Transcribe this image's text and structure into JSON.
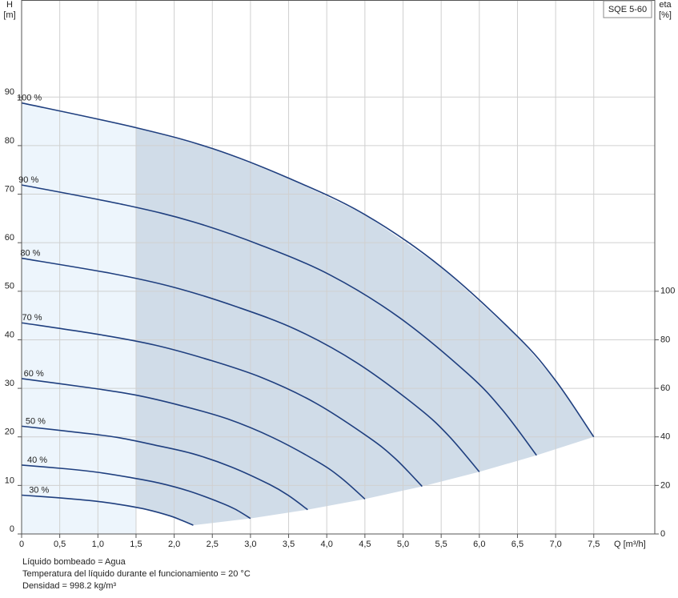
{
  "chart_data": {
    "type": "line",
    "product_label": "SQE 5-60",
    "y_label": [
      "H",
      "[m]"
    ],
    "y2_label": [
      "eta",
      "[%]"
    ],
    "x_label": "Q [m³/h]",
    "xlim": [
      0,
      8.3
    ],
    "xticks": [
      0,
      {
        "value": 0.5,
        "label": "0,5"
      },
      {
        "value": 1,
        "label": "1,0"
      },
      {
        "value": 1.5,
        "label": "1,5"
      },
      {
        "value": 2,
        "label": "2,0"
      },
      {
        "value": 2.5,
        "label": "2,5"
      },
      {
        "value": 3,
        "label": "3,0"
      },
      {
        "value": 3.5,
        "label": "3,5"
      },
      {
        "value": 4,
        "label": "4,0"
      },
      {
        "value": 4.5,
        "label": "4,5"
      },
      {
        "value": 5,
        "label": "5,0"
      },
      {
        "value": 5.5,
        "label": "5,5"
      },
      {
        "value": 6,
        "label": "6,0"
      },
      {
        "value": 6.5,
        "label": "6,5"
      },
      {
        "value": 7,
        "label": "7,0"
      },
      {
        "value": 7.5,
        "label": "7,5"
      }
    ],
    "ylim": [
      0,
      110
    ],
    "yticks": [
      0,
      10,
      20,
      30,
      40,
      50,
      60,
      70,
      80,
      90
    ],
    "y2lim": [
      0,
      220
    ],
    "y2ticks": [
      0,
      20,
      40,
      60,
      80,
      100
    ],
    "grid": true,
    "series": [
      {
        "name": "100 %",
        "color": "#1f3f7f",
        "x": [
          0,
          1.5,
          2.5,
          3.5,
          4.5,
          5.5,
          6.5,
          7,
          7.5
        ],
        "values": [
          88.8,
          83.7,
          79.4,
          73.3,
          65.8,
          55,
          40.7,
          31.6,
          20
        ]
      },
      {
        "name": "90 %",
        "color": "#1f3f7f",
        "x": [
          0,
          1.35,
          2.25,
          3.15,
          4.05,
          4.95,
          5.85,
          6.3,
          6.75
        ],
        "values": [
          71.9,
          67.8,
          64.3,
          59.4,
          53.3,
          44.6,
          33,
          25.6,
          16.2
        ]
      },
      {
        "name": "80 %",
        "color": "#1f3f7f",
        "x": [
          0,
          1.2,
          2,
          2.8,
          3.6,
          4.4,
          5.2,
          5.6,
          6
        ],
        "values": [
          56.8,
          53.6,
          50.8,
          46.9,
          42.1,
          35.2,
          26,
          20.2,
          12.8
        ]
      },
      {
        "name": "70 %",
        "color": "#1f3f7f",
        "x": [
          0,
          1.05,
          1.75,
          2.45,
          3.15,
          3.85,
          4.55,
          4.9,
          5.25
        ],
        "values": [
          43.5,
          41,
          38.9,
          35.9,
          32.2,
          27,
          19.9,
          15.5,
          9.8
        ]
      },
      {
        "name": "60 %",
        "color": "#1f3f7f",
        "x": [
          0,
          0.9,
          1.5,
          2.1,
          2.7,
          3.3,
          3.9,
          4.2,
          4.5
        ],
        "values": [
          32,
          30.1,
          28.6,
          26.4,
          23.7,
          19.8,
          14.7,
          11.4,
          7.2
        ]
      },
      {
        "name": "50 %",
        "color": "#1f3f7f",
        "x": [
          0,
          0.75,
          1.25,
          1.75,
          2.25,
          2.75,
          3.25,
          3.5,
          3.75
        ],
        "values": [
          22.2,
          20.9,
          19.9,
          18.3,
          16.5,
          13.8,
          10.2,
          7.9,
          5
        ]
      },
      {
        "name": "40 %",
        "color": "#1f3f7f",
        "x": [
          0,
          0.6,
          1,
          1.4,
          1.8,
          2.2,
          2.6,
          2.8,
          3
        ],
        "values": [
          14.2,
          13.4,
          12.7,
          11.7,
          10.5,
          8.8,
          6.5,
          5.1,
          3.2
        ]
      },
      {
        "name": "30 %",
        "color": "#1f3f7f",
        "x": [
          0,
          0.45,
          0.75,
          1.05,
          1.35,
          1.65,
          1.95,
          2.1,
          2.25
        ],
        "values": [
          8,
          7.5,
          7.1,
          6.6,
          5.9,
          5,
          3.7,
          2.8,
          1.8
        ]
      }
    ],
    "notes": [
      "Líquido bombeado = Agua",
      "Temperatura del líquido durante el funcionamiento = 20 °C",
      "Densidad = 998.2 kg/m³"
    ]
  }
}
